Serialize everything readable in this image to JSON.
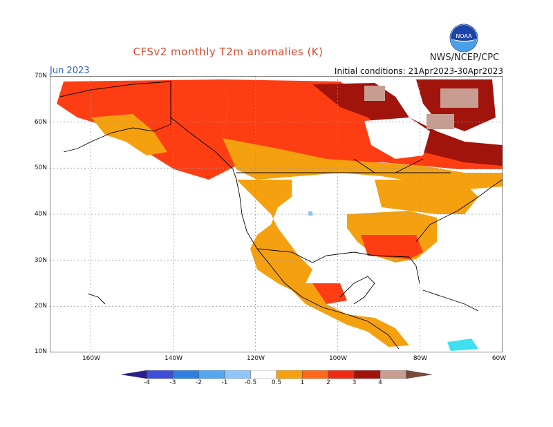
{
  "header": {
    "title": "CFSv2 monthly T2m anomalies (K)",
    "agency": "NWS/NCEP/CPC",
    "month": "Jun 2023",
    "initial_conditions": "Initial conditions: 21Apr2023-30Apr2023",
    "logo_text": "NOAA"
  },
  "axes": {
    "lat_labels": [
      "70N",
      "60N",
      "50N",
      "40N",
      "30N",
      "20N",
      "10N"
    ],
    "lon_labels": [
      "160W",
      "140W",
      "120W",
      "100W",
      "80W",
      "60W"
    ]
  },
  "legend": {
    "labels": [
      "-4",
      "-3",
      "-2",
      "-1",
      "-0.5",
      "0.5",
      "1",
      "2",
      "3",
      "4"
    ],
    "colors": [
      "#2a1f8f",
      "#3d4fd6",
      "#2f7fe0",
      "#54a6f0",
      "#8fc6f7",
      "#ffffff",
      "#f4a00f",
      "#ff6a1a",
      "#ee2a14",
      "#a0140c",
      "#c79d92",
      "#7a4a3a"
    ]
  }
}
